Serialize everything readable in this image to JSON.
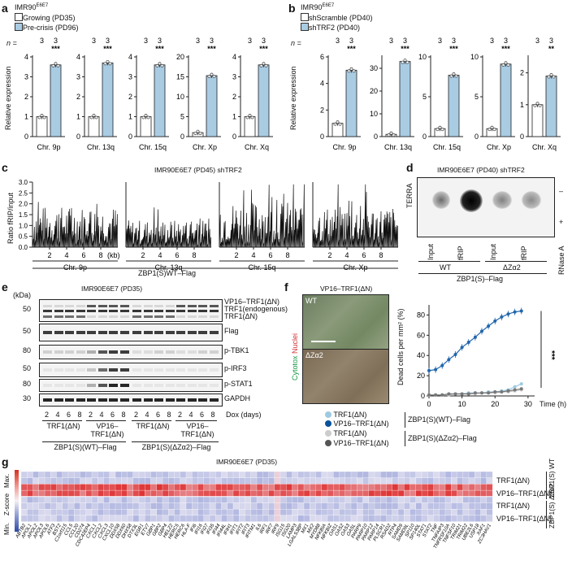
{
  "panels": {
    "a": "a",
    "b": "b",
    "c": "c",
    "d": "d",
    "e": "e",
    "f": "f",
    "g": "g"
  },
  "panel_a": {
    "cell_line": "IMR90",
    "cell_sup": "E6E7",
    "legend": [
      "Growing (PD35)",
      "Pre-crisis (PD96)"
    ],
    "n_label": "n =",
    "ylabel": "Relative expression",
    "colors": {
      "white": "#ffffff",
      "blue": "#a9cce3"
    },
    "chart_data": [
      {
        "type": "bar",
        "categories": [
          "Growing",
          "Pre-crisis"
        ],
        "values": [
          1.0,
          3.6
        ],
        "ylim": [
          0,
          4
        ],
        "yticks": [
          0,
          1,
          2,
          3,
          4
        ],
        "xlabel": "Chr. 9p",
        "n": [
          3,
          3
        ],
        "sig": "***"
      },
      {
        "type": "bar",
        "categories": [
          "Growing",
          "Pre-crisis"
        ],
        "values": [
          1.0,
          3.7
        ],
        "ylim": [
          0,
          4
        ],
        "yticks": [
          0,
          1,
          2,
          3,
          4
        ],
        "xlabel": "Chr. 13q",
        "n": [
          3,
          3
        ],
        "sig": "***"
      },
      {
        "type": "bar",
        "categories": [
          "Growing",
          "Pre-crisis"
        ],
        "values": [
          1.0,
          3.6
        ],
        "ylim": [
          0,
          4
        ],
        "yticks": [
          0,
          1,
          2,
          3,
          4
        ],
        "xlabel": "Chr. 15q",
        "n": [
          3,
          3
        ],
        "sig": "***"
      },
      {
        "type": "bar",
        "categories": [
          "Growing",
          "Pre-crisis"
        ],
        "values": [
          1.0,
          15.3
        ],
        "ylim": [
          0,
          20
        ],
        "yticks": [
          0,
          5,
          10,
          15,
          20
        ],
        "xlabel": "Chr. Xp",
        "n": [
          3,
          3
        ],
        "sig": "***"
      },
      {
        "type": "bar",
        "categories": [
          "Growing",
          "Pre-crisis"
        ],
        "values": [
          1.0,
          3.6
        ],
        "ylim": [
          0,
          4
        ],
        "yticks": [
          0,
          1,
          2,
          3,
          4
        ],
        "xlabel": "Chr. Xq",
        "n": [
          3,
          3
        ],
        "sig": "***"
      }
    ]
  },
  "panel_b": {
    "cell_line": "IMR90",
    "cell_sup": "E6E7",
    "legend": [
      "shScramble (PD40)",
      "shTRF2 (PD40)"
    ],
    "n_label": "n =",
    "ylabel": "Relative expression",
    "chart_data": [
      {
        "type": "bar",
        "categories": [
          "shScramble",
          "shTRF2"
        ],
        "values": [
          1.0,
          5.0
        ],
        "ylim": [
          0,
          6
        ],
        "yticks": [
          0,
          2,
          4,
          6
        ],
        "xlabel": "Chr. 9p",
        "n": [
          3,
          3
        ],
        "sig": "***"
      },
      {
        "type": "bar",
        "categories": [
          "shScramble",
          "shTRF2"
        ],
        "values": [
          1.0,
          33.0
        ],
        "ylim": [
          0,
          35
        ],
        "yticks": [
          0,
          10,
          20,
          30
        ],
        "xlabel": "Chr. 13q",
        "n": [
          3,
          3
        ],
        "sig": "***"
      },
      {
        "type": "bar",
        "categories": [
          "shScramble",
          "shTRF2"
        ],
        "values": [
          1.0,
          7.7
        ],
        "ylim": [
          0,
          10
        ],
        "yticks": [
          0,
          5,
          10
        ],
        "xlabel": "Chr. 15q",
        "n": [
          3,
          3
        ],
        "sig": "***"
      },
      {
        "type": "bar",
        "categories": [
          "shScramble",
          "shTRF2"
        ],
        "values": [
          1.0,
          9.1
        ],
        "ylim": [
          0,
          10
        ],
        "yticks": [
          0,
          5,
          10
        ],
        "xlabel": "Chr. Xp",
        "n": [
          3,
          3
        ],
        "sig": "***"
      },
      {
        "type": "bar",
        "categories": [
          "shScramble",
          "shTRF2"
        ],
        "values": [
          1.0,
          1.9
        ],
        "ylim": [
          0,
          2.5
        ],
        "yticks": [
          0,
          1,
          2
        ],
        "xlabel": "Chr. Xq",
        "n": [
          3,
          3
        ],
        "sig": "**"
      }
    ]
  },
  "panel_c": {
    "title": "IMR90E6E7 (PD45) shTRF2",
    "ylabel": "Ratio fRIP/input",
    "yticks": [
      0,
      0.5,
      1.0,
      1.5,
      2.0,
      2.5,
      3.0
    ],
    "xticks": [
      2,
      4,
      6,
      8
    ],
    "kb": "(kb)",
    "chromosomes": [
      "Chr. 9p",
      "Chr. 13q",
      "Chr. 15q",
      "Chr. Xp"
    ],
    "footer": "ZBP1(S)WT–Flag",
    "chart_data": {
      "type": "line",
      "ylim": [
        0,
        3
      ],
      "xlim": [
        0,
        10
      ],
      "series": [
        {
          "name": "Chr. 9p",
          "level": 0.9
        },
        {
          "name": "Chr. 13q",
          "level": 0.6
        },
        {
          "name": "Chr. 15q",
          "level": 1.0
        },
        {
          "name": "Chr. Xp",
          "level": 0.9
        }
      ]
    }
  },
  "panel_d": {
    "title": "IMR90E6E7 (PD40) shTRF2",
    "probe": "TERRA",
    "rnase_minus": "–",
    "rnase_plus": "+",
    "rnase": "RNase A",
    "lanes": [
      "Input",
      "fRIP",
      "Input",
      "fRIP"
    ],
    "groups": [
      "WT",
      "ΔZα2"
    ],
    "footer": "ZBP1(S)–Flag",
    "dot_intensity": [
      0.55,
      1.0,
      0.45,
      0.45
    ]
  },
  "panel_e": {
    "title": "IMR90E6E7 (PD35)",
    "kda": "(kDa)",
    "rows": [
      {
        "mw": "50",
        "labels": [
          "VP16–TRF1(ΔN)",
          "TRF1(endogenous)",
          "TRF1(ΔN)"
        ]
      },
      {
        "mw": "50",
        "labels": [
          "Flag"
        ]
      },
      {
        "mw": "80",
        "labels": [
          "p-TBK1"
        ]
      },
      {
        "mw": "50",
        "labels": [
          "p-IRF3"
        ]
      },
      {
        "mw": "80",
        "labels": [
          "p-STAT1"
        ]
      },
      {
        "mw": "30",
        "labels": [
          "GAPDH"
        ]
      }
    ],
    "dox_days": [
      "2",
      "4",
      "6",
      "8",
      "2",
      "4",
      "6",
      "8",
      "2",
      "4",
      "6",
      "8",
      "2",
      "4",
      "6",
      "8"
    ],
    "dox_label": "Dox (days)",
    "sub_groups": [
      "TRF1(ΔN)",
      "VP16–TRF1(ΔN)",
      "TRF1(ΔN)",
      "VP16–TRF1(ΔN)"
    ],
    "groups": [
      "ZBP1(S)(WT)–Flag",
      "ZBP1(S)(ΔZα2)–Flag"
    ]
  },
  "panel_f": {
    "title": "VP16–TRF1(ΔN)",
    "img_labels": [
      "WT",
      "ΔZα2"
    ],
    "stain_cytotox": "Cytotox",
    "stain_nuclei": "Nuclei",
    "ylabel": "Dead cells per mm² (%)",
    "xlabel": "Time (h)",
    "sig": "***",
    "legend": [
      {
        "label": "TRF1(ΔN)",
        "color": "#9ecae1"
      },
      {
        "label": "VP16–TRF1(ΔN)",
        "color": "#08519c"
      },
      {
        "label": "TRF1(ΔN)",
        "color": "#cccccc"
      },
      {
        "label": "VP16–TRF1(ΔN)",
        "color": "#555555"
      }
    ],
    "legend_groups": [
      "ZBP1(S)(WT)–Flag",
      "ZBP1(S)(ΔZα2)–Flag"
    ],
    "chart_data": {
      "type": "line",
      "xlim": [
        0,
        32
      ],
      "ylim": [
        0,
        90
      ],
      "xticks": [
        0,
        10,
        20,
        30
      ],
      "yticks": [
        0,
        20,
        40,
        60,
        80
      ],
      "x": [
        0,
        2,
        4,
        6,
        8,
        10,
        12,
        14,
        16,
        18,
        20,
        22,
        24,
        26,
        28
      ],
      "series": [
        {
          "name": "VP16–TRF1(ΔN) WT",
          "values": [
            25,
            26,
            30,
            36,
            41,
            48,
            53,
            58,
            64,
            69,
            74,
            78,
            81,
            83,
            84
          ],
          "color": "#2166ac"
        },
        {
          "name": "TRF1(ΔN) WT",
          "values": [
            1,
            1,
            1,
            2,
            2,
            2,
            3,
            3,
            3,
            4,
            4,
            5,
            6,
            9,
            12
          ],
          "color": "#9ecae1"
        },
        {
          "name": "TRF1(ΔN) ΔZα2",
          "values": [
            1,
            1,
            1,
            1,
            2,
            2,
            2,
            2,
            3,
            3,
            3,
            4,
            4,
            5,
            6
          ],
          "color": "#cccccc"
        },
        {
          "name": "VP16–TRF1(ΔN) ΔZα2",
          "values": [
            1,
            1,
            1,
            2,
            2,
            2,
            2,
            3,
            3,
            3,
            4,
            4,
            5,
            6,
            7
          ],
          "color": "#777777"
        }
      ]
    }
  },
  "panel_g": {
    "title": "IMR90E6E7 (PD35)",
    "zscore": "Z-score",
    "max": "Max.",
    "min": "Min.",
    "row_labels": [
      "TRF1(ΔN)",
      "VP16–TRF1(ΔN)",
      "TRF1(ΔN)",
      "VP16–TRF1(ΔN)"
    ],
    "group_labels": [
      "ZBP1(S) WT",
      "ZBP1(S) ΔZα2"
    ],
    "genes": [
      "ABTB2",
      "APOL1",
      "APOL2",
      "APOL3",
      "APOL6",
      "ATF3",
      "BST2",
      "C1orf115",
      "CCL5",
      "CCL20",
      "CD274",
      "CDC42EP4",
      "CXCL1",
      "CXCL2",
      "CXCL3",
      "CXCL10",
      "DDX58",
      "DDX60",
      "DHX58",
      "DTX3L",
      "EGR1",
      "ETV7",
      "GBP1",
      "GBP2",
      "GBP4",
      "HELZ2",
      "HERC5",
      "HERC6",
      "HLA-F",
      "IFI6",
      "IFI16",
      "IFI27",
      "IFI35",
      "IFI44",
      "IFI44L",
      "IFIH1",
      "IFIT1",
      "IFIT2",
      "IFIT3",
      "IFITM1",
      "IL6",
      "IRF1",
      "IRF7",
      "IRF9",
      "ISG15",
      "ISG20",
      "LAMP3",
      "LGALS3BP",
      "MX1",
      "MX2",
      "MYD88",
      "NFKBIA",
      "NFKBIZ",
      "OAS1",
      "OAS2",
      "OAS3",
      "OASL",
      "PARP9",
      "PARP10",
      "PARP12",
      "PARP14",
      "PLSCR1",
      "RSAD2",
      "RTP4",
      "SAMD9",
      "SAMD9L",
      "SP110",
      "SP140L",
      "STAT1",
      "STAT2",
      "TNF",
      "TNFAIP3",
      "TNFRSF10A",
      "TNFSF10",
      "TRIM21",
      "TRIM22",
      "UBE2L6",
      "USP18",
      "XAF1",
      "ZC3HAV1"
    ]
  }
}
